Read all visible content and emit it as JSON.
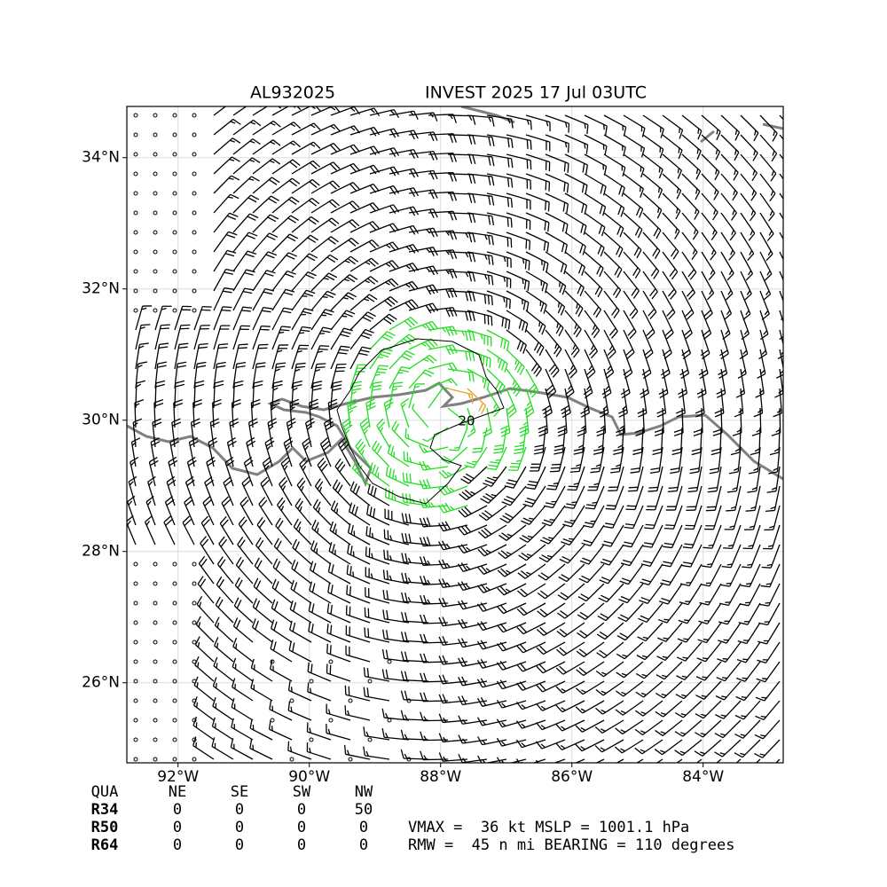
{
  "chart_data": {
    "type": "map",
    "title_left": "AL932025",
    "title_right": "INVEST 2025 17 Jul 03UTC",
    "xlim": [
      -92.78,
      -82.78
    ],
    "ylim": [
      24.78,
      34.78
    ],
    "xticks": [
      {
        "value": -92,
        "label": "92°W"
      },
      {
        "value": -90,
        "label": "90°W"
      },
      {
        "value": -88,
        "label": "88°W"
      },
      {
        "value": -86,
        "label": "86°W"
      },
      {
        "value": -84,
        "label": "84°W"
      }
    ],
    "yticks": [
      {
        "value": 26,
        "label": "26°N"
      },
      {
        "value": 28,
        "label": "28°N"
      },
      {
        "value": 30,
        "label": "30°N"
      },
      {
        "value": 32,
        "label": "32°N"
      },
      {
        "value": 34,
        "label": "34°N"
      }
    ],
    "grid": true,
    "contour_label": "20"
  },
  "table": {
    "header": [
      "QUA",
      "NE",
      "SE",
      "SW",
      "NW"
    ],
    "rows": [
      [
        "R34",
        0,
        0,
        0,
        50
      ],
      [
        "R50",
        0,
        0,
        0,
        0
      ],
      [
        "R64",
        0,
        0,
        0,
        0
      ]
    ]
  },
  "summary": [
    "VMAX =  36 kt MSLP = 1001.1 hPa",
    "RMW =  45 n mi BEARING = 110 degrees"
  ]
}
